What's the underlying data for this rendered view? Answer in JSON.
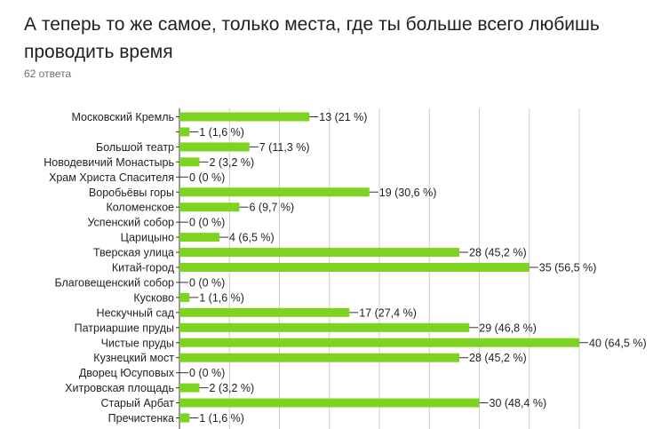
{
  "header": {
    "title": "А теперь то же самое, только места, где ты больше всего любишь проводить время",
    "responses": "62 ответа"
  },
  "colors": {
    "bar": "#7ed321",
    "grid": "#cccccc",
    "axis": "#333333"
  },
  "chart_data": {
    "type": "bar",
    "orientation": "horizontal",
    "title": "А теперь то же самое, только места, где ты больше всего любишь проводить время",
    "xlabel": "",
    "ylabel": "",
    "xlim": [
      0,
      40
    ],
    "grid": true,
    "categories": [
      "Московский Кремль",
      "",
      "Большой театр",
      "Новодевичий Монастырь",
      "Храм Христа Спасителя",
      "Воробьёвы горы",
      "Коломенское",
      "Успенский собор",
      "Царицыно",
      "Тверская улица",
      "Китай-город",
      "Благовещенский собор",
      "Кусково",
      "Нескучный сад",
      "Патриаршие пруды",
      "Чистые пруды",
      "Кузнецкий мост",
      "Дворец Юсуповых",
      "Хитровская площадь",
      "Старый Арбат",
      "Пречистенка"
    ],
    "values": [
      13,
      1,
      7,
      2,
      0,
      19,
      6,
      0,
      4,
      28,
      35,
      0,
      1,
      17,
      29,
      40,
      28,
      0,
      2,
      30,
      1
    ],
    "labels": [
      "13 (21 %)",
      "1 (1,6 %)",
      "7 (11,3 %)",
      "2 (3,2 %)",
      "0 (0 %)",
      "19 (30,6 %)",
      "6 (9,7 %)",
      "0 (0 %)",
      "4 (6,5 %)",
      "28 (45,2 %)",
      "35 (56,5 %)",
      "0 (0 %)",
      "1 (1,6 %)",
      "17 (27,4 %)",
      "29 (46,8 %)",
      "40 (64,5 %)",
      "28 (45,2 %)",
      "0 (0 %)",
      "2 (3,2 %)",
      "30 (48,4 %)",
      "1 (1,6 %)"
    ]
  }
}
